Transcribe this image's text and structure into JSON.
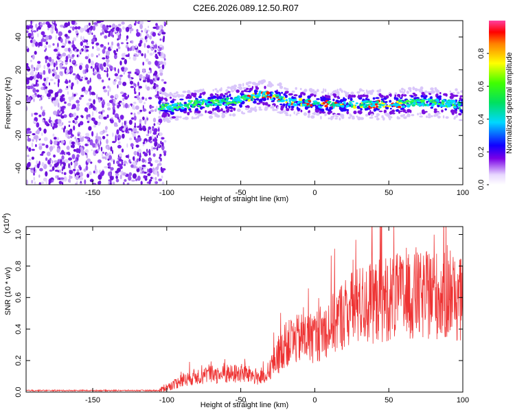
{
  "title": "C2E6.2026.089.12.50.R07",
  "chart_data": [
    {
      "type": "heatmap",
      "name": "spectrogram",
      "xlabel": "Height of straight line (km)",
      "ylabel": "Frequency (Hz)",
      "xlim": [
        -195,
        100
      ],
      "ylim": [
        -50,
        50
      ],
      "xticks": [
        -150,
        -100,
        -50,
        0,
        50,
        100
      ],
      "yticks": [
        -40,
        -20,
        0,
        20,
        40
      ],
      "noise_region_end_km": -105,
      "ridge": {
        "x": [
          -105,
          -95,
          -85,
          -75,
          -65,
          -55,
          -45,
          -35,
          -25,
          -15,
          -5,
          5,
          15,
          25,
          35,
          45,
          55,
          65,
          75,
          85,
          95,
          100
        ],
        "y": [
          -2,
          -3,
          -1,
          0,
          0,
          1,
          3,
          5,
          3,
          0,
          0,
          -1,
          -1,
          -1,
          -1,
          -1,
          -1,
          0,
          0,
          0,
          -1,
          -2
        ]
      },
      "colorbar": {
        "label": "Normalized spectral amplitude",
        "range": [
          0,
          1
        ],
        "ticks": [
          "0.0",
          "0.2",
          "0.4",
          "0.6",
          "0.8"
        ]
      }
    },
    {
      "type": "line",
      "name": "snr",
      "xlabel": "Height of straight line (km)",
      "ylabel": "SNR (10 * v/v)",
      "exponent_label": "(x10",
      "exponent_power": "4",
      "xlim": [
        -195,
        100
      ],
      "ylim": [
        0,
        1.05
      ],
      "xticks": [
        -150,
        -100,
        -50,
        0,
        50,
        100
      ],
      "yticks": [
        "0.0",
        "0.2",
        "0.4",
        "0.6",
        "0.8",
        "1.0"
      ],
      "series_color": "#ee3333",
      "envelope": {
        "x": [
          -195,
          -105,
          -100,
          -90,
          -80,
          -70,
          -60,
          -50,
          -40,
          -32,
          -30,
          -25,
          -20,
          -10,
          0,
          10,
          20,
          30,
          40,
          50,
          60,
          70,
          80,
          90,
          100
        ],
        "y": [
          0.01,
          0.01,
          0.03,
          0.07,
          0.1,
          0.11,
          0.11,
          0.12,
          0.1,
          0.08,
          0.16,
          0.22,
          0.3,
          0.34,
          0.35,
          0.42,
          0.5,
          0.55,
          0.57,
          0.6,
          0.6,
          0.6,
          0.62,
          0.6,
          0.58
        ]
      }
    }
  ]
}
